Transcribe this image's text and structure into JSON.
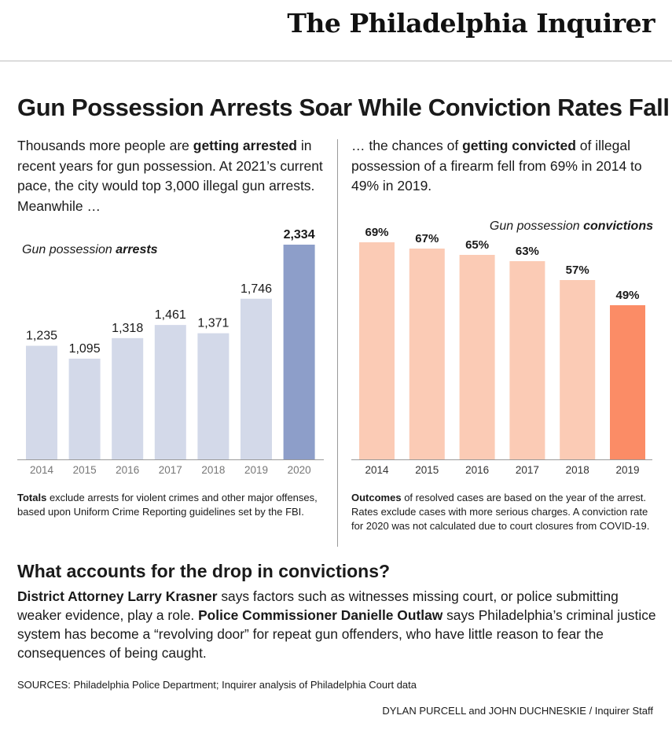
{
  "masthead": {
    "title": "The Philadelphia Inquirer"
  },
  "headline": "Gun Possession Arrests Soar While Conviction Rates Fall",
  "intro_left": [
    {
      "text": "Thousands more people are ",
      "bold": false
    },
    {
      "text": "getting arrested",
      "bold": true
    },
    {
      "text": " in recent years for gun possession. At 2021’s current pace, the city would top 3,000 illegal gun arrests. Meanwhile …",
      "bold": false
    }
  ],
  "intro_right": [
    {
      "text": "… the chances of ",
      "bold": false
    },
    {
      "text": "getting convicted",
      "bold": true
    },
    {
      "text": " of illegal possession of a firearm fell from 69% in 2014 to 49% in 2019.",
      "bold": false
    }
  ],
  "arrests_label": {
    "plain": "Gun possession ",
    "bold": "arrests"
  },
  "convictions_label": {
    "plain": "Gun possession ",
    "bold": "convictions"
  },
  "chart_data": [
    {
      "type": "bar",
      "categories": [
        "2014",
        "2015",
        "2016",
        "2017",
        "2018",
        "2019",
        "2020"
      ],
      "values": [
        1235,
        1095,
        1318,
        1461,
        1371,
        1746,
        2334
      ],
      "value_labels": [
        "1,235",
        "1,095",
        "1,318",
        "1,461",
        "1,371",
        "1,746",
        "2,334"
      ],
      "highlight_index": 6,
      "colors": {
        "bar": "#d3d9e9",
        "highlight": "#8d9ec9",
        "axis": "#9a9a9a",
        "tick_text": "#777777"
      },
      "ylim": [
        0,
        2334
      ]
    },
    {
      "type": "bar",
      "categories": [
        "2014",
        "2015",
        "2016",
        "2017",
        "2018",
        "2019"
      ],
      "values": [
        69,
        67,
        65,
        63,
        57,
        49
      ],
      "value_labels": [
        "69%",
        "67%",
        "65%",
        "63%",
        "57%",
        "49%"
      ],
      "highlight_index": 5,
      "colors": {
        "bar": "#fbcbb5",
        "highlight": "#fb8c66",
        "axis": "#9a9a9a",
        "tick_text": "#333333"
      },
      "ylim": [
        0,
        69
      ]
    }
  ],
  "note_left": [
    {
      "text": "Totals",
      "bold": true
    },
    {
      "text": " exclude arrests for violent crimes and other major offenses, based upon Uniform Crime Reporting guidelines set by the FBI.",
      "bold": false
    }
  ],
  "note_right": [
    {
      "text": "Outcomes",
      "bold": true
    },
    {
      "text": " of resolved cases are based on the year of the arrest. Rates exclude cases with more serious charges. A conviction rate for 2020 was not calculated due to court closures from COVID-19.",
      "bold": false
    }
  ],
  "subhead": "What accounts for the drop in convictions?",
  "body": [
    {
      "text": "District Attorney Larry Krasner",
      "bold": true
    },
    {
      "text": " says factors such as witnesses missing court, or police submitting weaker evidence, play a role. ",
      "bold": false
    },
    {
      "text": "Police Commissioner Danielle Outlaw",
      "bold": true
    },
    {
      "text": " says Philadelphia’s criminal justice system has become a “revolving door” for repeat gun offenders, who have little reason to fear the consequences of being caught.",
      "bold": false
    }
  ],
  "sources": "SOURCES: Philadelphia Police Department; Inquirer analysis of Philadelphia Court data",
  "credit": "DYLAN PURCELL and JOHN DUCHNESKIE / Inquirer Staff"
}
